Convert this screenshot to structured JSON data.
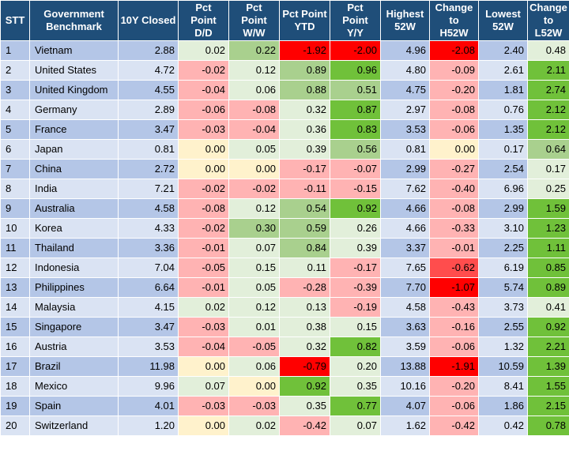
{
  "colors": {
    "header_bg": "#1f4e79",
    "row_odd": "#b4c6e7",
    "row_even": "#dae3f3",
    "neg_light": "#ffb3b3",
    "neg_strong": "#ff0000",
    "neg_medium": "#ff4d4d",
    "pos_light": "#e2efda",
    "pos_medium": "#a9d08e",
    "pos_strong": "#70c13a",
    "neutral": "#fff2cc"
  },
  "table": {
    "headers": [
      "STT",
      "Government\nBenchmark",
      "10Y Closed",
      "Pct\nPoint\nD/D",
      "Pct\nPoint\nW/W",
      "Pct Point\nYTD",
      "Pct\nPoint\nY/Y",
      "Highest\n52W",
      "Change\nto\nH52W",
      "Lowest\n52W",
      "Change\nto\nL52W"
    ],
    "rows": [
      {
        "cells": [
          "1",
          "Vietnam",
          "2.88",
          "0.02",
          "0.22",
          "-1.92",
          "-2.00",
          "4.96",
          "-2.08",
          "2.40",
          "0.48"
        ],
        "colors": [
          "",
          "",
          "",
          "pos_light",
          "pos_medium",
          "neg_strong",
          "neg_strong",
          "",
          "neg_strong",
          "",
          "pos_light"
        ]
      },
      {
        "cells": [
          "2",
          "United States",
          "4.72",
          "-0.02",
          "0.12",
          "0.89",
          "0.96",
          "4.80",
          "-0.09",
          "2.61",
          "2.11"
        ],
        "colors": [
          "",
          "",
          "",
          "neg_light",
          "pos_light",
          "pos_medium",
          "pos_strong",
          "",
          "neg_light",
          "",
          "pos_strong"
        ]
      },
      {
        "cells": [
          "3",
          "United Kingdom",
          "4.55",
          "-0.04",
          "0.06",
          "0.88",
          "0.51",
          "4.75",
          "-0.20",
          "1.81",
          "2.74"
        ],
        "colors": [
          "",
          "",
          "",
          "neg_light",
          "pos_light",
          "pos_medium",
          "pos_medium",
          "",
          "neg_light",
          "",
          "pos_strong"
        ]
      },
      {
        "cells": [
          "4",
          "Germany",
          "2.89",
          "-0.06",
          "-0.08",
          "0.32",
          "0.87",
          "2.97",
          "-0.08",
          "0.76",
          "2.12"
        ],
        "colors": [
          "",
          "",
          "",
          "neg_light",
          "neg_light",
          "pos_light",
          "pos_strong",
          "",
          "neg_light",
          "",
          "pos_strong"
        ]
      },
      {
        "cells": [
          "5",
          "France",
          "3.47",
          "-0.03",
          "-0.04",
          "0.36",
          "0.83",
          "3.53",
          "-0.06",
          "1.35",
          "2.12"
        ],
        "colors": [
          "",
          "",
          "",
          "neg_light",
          "neg_light",
          "pos_light",
          "pos_strong",
          "",
          "neg_light",
          "",
          "pos_strong"
        ]
      },
      {
        "cells": [
          "6",
          "Japan",
          "0.81",
          "0.00",
          "0.05",
          "0.39",
          "0.56",
          "0.81",
          "0.00",
          "0.17",
          "0.64"
        ],
        "colors": [
          "",
          "",
          "",
          "neutral",
          "pos_light",
          "pos_light",
          "pos_medium",
          "",
          "neutral",
          "",
          "pos_medium"
        ]
      },
      {
        "cells": [
          "7",
          "China",
          "2.72",
          "0.00",
          "0.00",
          "-0.17",
          "-0.07",
          "2.99",
          "-0.27",
          "2.54",
          "0.17"
        ],
        "colors": [
          "",
          "",
          "",
          "neutral",
          "neutral",
          "neg_light",
          "neg_light",
          "",
          "neg_light",
          "",
          "pos_light"
        ]
      },
      {
        "cells": [
          "8",
          "India",
          "7.21",
          "-0.02",
          "-0.02",
          "-0.11",
          "-0.15",
          "7.62",
          "-0.40",
          "6.96",
          "0.25"
        ],
        "colors": [
          "",
          "",
          "",
          "neg_light",
          "neg_light",
          "neg_light",
          "neg_light",
          "",
          "neg_light",
          "",
          "pos_light"
        ]
      },
      {
        "cells": [
          "9",
          "Australia",
          "4.58",
          "-0.08",
          "0.12",
          "0.54",
          "0.92",
          "4.66",
          "-0.08",
          "2.99",
          "1.59"
        ],
        "colors": [
          "",
          "",
          "",
          "neg_light",
          "pos_light",
          "pos_medium",
          "pos_strong",
          "",
          "neg_light",
          "",
          "pos_strong"
        ]
      },
      {
        "cells": [
          "10",
          "Korea",
          "4.33",
          "-0.02",
          "0.30",
          "0.59",
          "0.26",
          "4.66",
          "-0.33",
          "3.10",
          "1.23"
        ],
        "colors": [
          "",
          "",
          "",
          "neg_light",
          "pos_medium",
          "pos_medium",
          "pos_light",
          "",
          "neg_light",
          "",
          "pos_strong"
        ]
      },
      {
        "cells": [
          "11",
          "Thailand",
          "3.36",
          "-0.01",
          "0.07",
          "0.84",
          "0.39",
          "3.37",
          "-0.01",
          "2.25",
          "1.11"
        ],
        "colors": [
          "",
          "",
          "",
          "neg_light",
          "pos_light",
          "pos_medium",
          "pos_light",
          "",
          "neg_light",
          "",
          "pos_strong"
        ]
      },
      {
        "cells": [
          "12",
          "Indonesia",
          "7.04",
          "-0.05",
          "0.15",
          "0.11",
          "-0.17",
          "7.65",
          "-0.62",
          "6.19",
          "0.85"
        ],
        "colors": [
          "",
          "",
          "",
          "neg_light",
          "pos_light",
          "pos_light",
          "neg_light",
          "",
          "neg_medium",
          "",
          "pos_strong"
        ]
      },
      {
        "cells": [
          "13",
          "Philippines",
          "6.64",
          "-0.01",
          "0.05",
          "-0.28",
          "-0.39",
          "7.70",
          "-1.07",
          "5.74",
          "0.89"
        ],
        "colors": [
          "",
          "",
          "",
          "neg_light",
          "pos_light",
          "neg_light",
          "neg_light",
          "",
          "neg_strong",
          "",
          "pos_strong"
        ]
      },
      {
        "cells": [
          "14",
          "Malaysia",
          "4.15",
          "0.02",
          "0.12",
          "0.13",
          "-0.19",
          "4.58",
          "-0.43",
          "3.73",
          "0.41"
        ],
        "colors": [
          "",
          "",
          "",
          "pos_light",
          "pos_light",
          "pos_light",
          "neg_light",
          "",
          "neg_light",
          "",
          "pos_light"
        ]
      },
      {
        "cells": [
          "15",
          "Singapore",
          "3.47",
          "-0.03",
          "0.01",
          "0.38",
          "0.15",
          "3.63",
          "-0.16",
          "2.55",
          "0.92"
        ],
        "colors": [
          "",
          "",
          "",
          "neg_light",
          "pos_light",
          "pos_light",
          "pos_light",
          "",
          "neg_light",
          "",
          "pos_strong"
        ]
      },
      {
        "cells": [
          "16",
          "Austria",
          "3.53",
          "-0.04",
          "-0.05",
          "0.32",
          "0.82",
          "3.59",
          "-0.06",
          "1.32",
          "2.21"
        ],
        "colors": [
          "",
          "",
          "",
          "neg_light",
          "neg_light",
          "pos_light",
          "pos_strong",
          "",
          "neg_light",
          "",
          "pos_strong"
        ]
      },
      {
        "cells": [
          "17",
          "Brazil",
          "11.98",
          "0.00",
          "0.06",
          "-0.79",
          "0.20",
          "13.88",
          "-1.91",
          "10.59",
          "1.39"
        ],
        "colors": [
          "",
          "",
          "",
          "neutral",
          "pos_light",
          "neg_strong",
          "pos_light",
          "",
          "neg_strong",
          "",
          "pos_strong"
        ]
      },
      {
        "cells": [
          "18",
          "Mexico",
          "9.96",
          "0.07",
          "0.00",
          "0.92",
          "0.35",
          "10.16",
          "-0.20",
          "8.41",
          "1.55"
        ],
        "colors": [
          "",
          "",
          "",
          "pos_light",
          "neutral",
          "pos_strong",
          "pos_light",
          "",
          "neg_light",
          "",
          "pos_strong"
        ]
      },
      {
        "cells": [
          "19",
          "Spain",
          "4.01",
          "-0.03",
          "-0.03",
          "0.35",
          "0.77",
          "4.07",
          "-0.06",
          "1.86",
          "2.15"
        ],
        "colors": [
          "",
          "",
          "",
          "neg_light",
          "neg_light",
          "pos_light",
          "pos_strong",
          "",
          "neg_light",
          "",
          "pos_strong"
        ]
      },
      {
        "cells": [
          "20",
          "Switzerland",
          "1.20",
          "0.00",
          "0.02",
          "-0.42",
          "0.07",
          "1.62",
          "-0.42",
          "0.42",
          "0.78"
        ],
        "colors": [
          "",
          "",
          "",
          "neutral",
          "pos_light",
          "neg_light",
          "pos_light",
          "",
          "neg_light",
          "",
          "pos_strong"
        ]
      }
    ]
  }
}
